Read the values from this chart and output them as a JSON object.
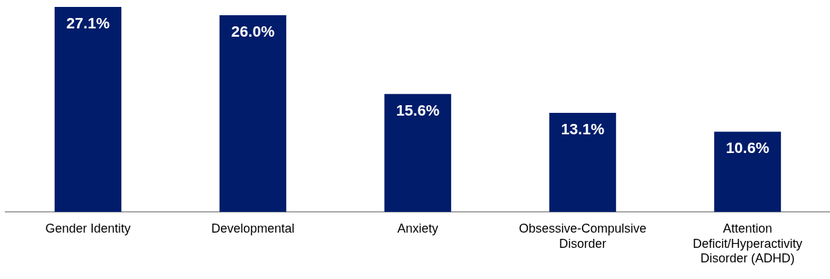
{
  "chart_data": {
    "type": "bar",
    "categories": [
      "Gender Identity",
      "Developmental",
      "Anxiety",
      "Obsessive-Compulsive Disorder",
      "Attention Deficit/Hyperactivity Disorder (ADHD)"
    ],
    "values": [
      27.1,
      26.0,
      15.6,
      13.1,
      10.6
    ],
    "value_labels": [
      "27.1%",
      "26.0%",
      "15.6%",
      "13.1%",
      "10.6%"
    ],
    "color": "#001c6b",
    "grid": false,
    "legend": false
  }
}
